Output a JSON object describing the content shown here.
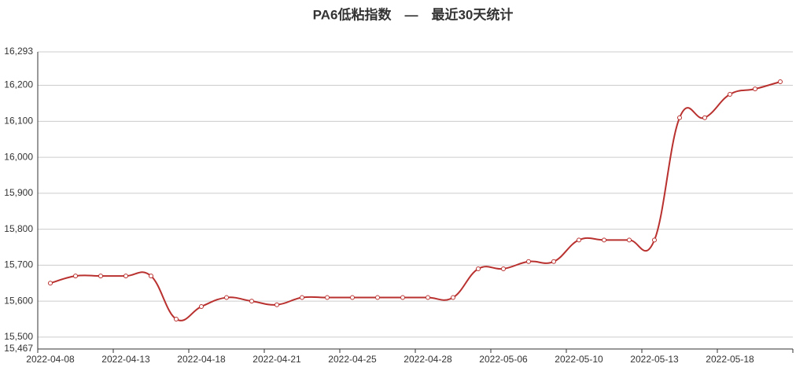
{
  "chart_data": {
    "type": "line",
    "title": "PA6低粘指数　—　最近30天统计",
    "categories": [
      "2022-04-08",
      null,
      null,
      "2022-04-13",
      null,
      null,
      "2022-04-18",
      null,
      null,
      "2022-04-21",
      null,
      null,
      "2022-04-25",
      null,
      null,
      "2022-04-28",
      null,
      null,
      "2022-05-06",
      null,
      null,
      "2022-05-10",
      null,
      null,
      "2022-05-13",
      null,
      null,
      "2022-05-18",
      null,
      null
    ],
    "series": [
      {
        "color": "#b9312f",
        "values": [
          15650,
          15670,
          15670,
          15670,
          15670,
          15550,
          15585,
          15610,
          15600,
          15590,
          15610,
          15610,
          15610,
          15610,
          15610,
          15610,
          15610,
          15690,
          15690,
          15710,
          15710,
          15770,
          15770,
          15770,
          15770,
          16110,
          16110,
          16175,
          16190,
          16210
        ]
      }
    ],
    "ylim": [
      15467,
      16293
    ],
    "yticks": [
      {
        "value": 15467,
        "label": "15,467"
      },
      {
        "value": 15500,
        "label": "15,500"
      },
      {
        "value": 15600,
        "label": "15,600"
      },
      {
        "value": 15700,
        "label": "15,700"
      },
      {
        "value": 15800,
        "label": "15,800"
      },
      {
        "value": 15900,
        "label": "15,900"
      },
      {
        "value": 16000,
        "label": "16,000"
      },
      {
        "value": 16100,
        "label": "16,100"
      },
      {
        "value": 16200,
        "label": "16,200"
      },
      {
        "value": 16293,
        "label": "16,293"
      }
    ],
    "grid": true,
    "smooth": true
  }
}
